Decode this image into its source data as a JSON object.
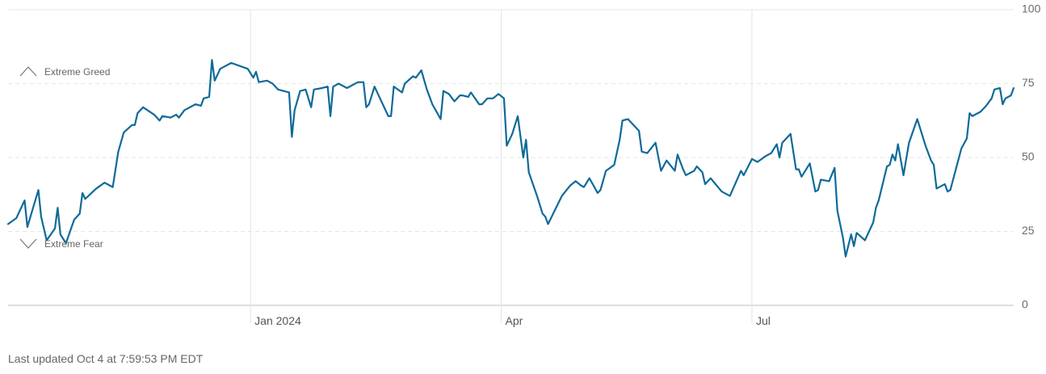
{
  "chart_data": {
    "type": "line",
    "x": [
      0,
      3,
      6,
      7,
      11,
      12,
      14,
      17,
      18,
      19,
      21,
      24,
      26,
      27,
      28,
      32,
      35,
      38,
      40,
      42,
      45,
      46,
      47,
      49,
      53,
      55,
      56,
      59,
      61,
      62,
      64,
      68,
      70,
      71,
      73,
      74,
      75,
      77,
      81,
      84,
      87,
      89,
      90,
      91,
      94,
      96,
      98,
      102,
      103,
      104,
      106,
      108,
      110,
      111,
      114,
      116,
      117,
      118,
      120,
      123,
      127,
      129,
      130,
      131,
      133,
      135,
      138,
      139,
      140,
      143,
      144,
      147,
      148,
      150,
      152,
      154,
      157,
      158,
      160,
      162,
      164,
      165,
      167,
      168,
      171,
      172,
      174,
      176,
      178,
      180,
      181,
      183,
      185,
      187,
      188,
      189,
      192,
      194,
      195,
      196,
      201,
      204,
      206,
      208,
      209,
      211,
      214,
      215,
      217,
      220,
      222,
      223,
      225,
      226,
      229,
      230,
      232,
      235,
      237,
      239,
      242,
      243,
      245,
      246,
      249,
      250,
      252,
      253,
      255,
      259,
      262,
      266,
      267,
      270,
      272,
      275,
      277,
      279,
      280,
      281,
      284,
      286,
      287,
      288,
      290,
      291,
      293,
      294,
      295,
      298,
      300,
      301,
      303,
      304,
      306,
      307,
      308,
      311,
      314,
      315,
      316,
      319,
      320,
      321,
      322,
      323,
      325,
      327,
      330,
      333,
      335,
      336,
      337,
      340,
      341,
      342,
      346,
      348,
      349,
      350,
      353,
      355,
      357,
      358,
      360,
      361,
      362,
      364,
      365
    ],
    "values": [
      27.5,
      29.5,
      35.5,
      26.5,
      39,
      30,
      22,
      26,
      33,
      24,
      21,
      29,
      31,
      38,
      36,
      39.5,
      41.5,
      40,
      52,
      58.5,
      61,
      61,
      65,
      67,
      64.5,
      62.5,
      64,
      63.5,
      64.5,
      63.5,
      66,
      68,
      67.5,
      70,
      70.5,
      83,
      76,
      80,
      82,
      81,
      80,
      77,
      79,
      75.5,
      76,
      75,
      73,
      72,
      57,
      66,
      72.5,
      73,
      67,
      73,
      73.5,
      74,
      64,
      74,
      75,
      73.5,
      75.5,
      75.5,
      67,
      68,
      74,
      70,
      64,
      64,
      74,
      72,
      75,
      77.5,
      77,
      79.5,
      73,
      68,
      63,
      72.5,
      71.5,
      69,
      71,
      71,
      70.5,
      72,
      68,
      68,
      70,
      70,
      71.5,
      70,
      54,
      58,
      64,
      50,
      56,
      45,
      37,
      31,
      30,
      27.5,
      37,
      40.5,
      42,
      40.5,
      40,
      43,
      38,
      39,
      45.5,
      47.5,
      56,
      62.5,
      63,
      62,
      59,
      52,
      51.5,
      55,
      45.5,
      49,
      45.5,
      51,
      46,
      44,
      45.5,
      47,
      45,
      41,
      43,
      38.5,
      37,
      45.5,
      44,
      49.5,
      48.5,
      50.5,
      51.5,
      54.5,
      50,
      55,
      58,
      46,
      46,
      43.5,
      46.5,
      48,
      38.5,
      39,
      42.5,
      42,
      46.5,
      32,
      23,
      16.5,
      24,
      20,
      24.5,
      22,
      28,
      33,
      35.5,
      47,
      47.5,
      51,
      49,
      54.5,
      44,
      55,
      63,
      54,
      49,
      47.5,
      39.5,
      41,
      38.5,
      39,
      53,
      56.5,
      65,
      64,
      65.5,
      67.5,
      70,
      73,
      73.5,
      68,
      70,
      71,
      73.5
    ],
    "color": "#0e6a99",
    "xlim": [
      0,
      365
    ],
    "xticks": [
      {
        "value": 88,
        "label": "Jan 2024"
      },
      {
        "value": 179,
        "label": "Apr"
      },
      {
        "value": 270,
        "label": "Jul"
      }
    ],
    "ylim": [
      0,
      100
    ],
    "yticks": [
      0,
      25,
      50,
      75,
      100
    ],
    "grid": true,
    "annotations": [
      "Extreme Greed",
      "Extreme Fear"
    ]
  },
  "footer": "Last updated Oct 4 at 7:59:53 PM EDT"
}
